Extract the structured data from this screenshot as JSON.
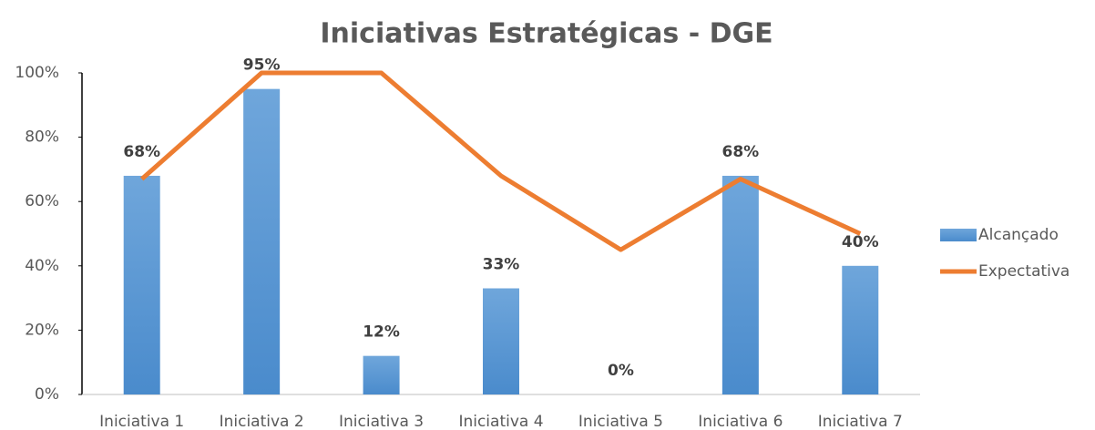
{
  "chart_data": {
    "type": "bar",
    "title": "Iniciativas Estratégicas - DGE",
    "categories": [
      "Iniciativa 1",
      "Iniciativa 2",
      "Iniciativa 3",
      "Iniciativa 4",
      "Iniciativa 5",
      "Iniciativa 6",
      "Iniciativa 7"
    ],
    "series": [
      {
        "name": "Alcançado",
        "type": "bar",
        "color": "#5b9bd5",
        "values": [
          68,
          95,
          12,
          33,
          0,
          68,
          40
        ],
        "value_labels": [
          "68%",
          "95%",
          "12%",
          "33%",
          "0%",
          "68%",
          "40%"
        ]
      },
      {
        "name": "Expectativa",
        "type": "line",
        "color": "#ed7d31",
        "values": [
          67,
          100,
          100,
          68,
          45,
          67,
          50
        ]
      }
    ],
    "ylim": [
      0,
      100
    ],
    "yticks": [
      {
        "value": 0,
        "label": "0%"
      },
      {
        "value": 20,
        "label": "20%"
      },
      {
        "value": 40,
        "label": "40%"
      },
      {
        "value": 60,
        "label": "60%"
      },
      {
        "value": 80,
        "label": "80%"
      },
      {
        "value": 100,
        "label": "100%"
      }
    ],
    "grid": false,
    "legend": "right"
  }
}
